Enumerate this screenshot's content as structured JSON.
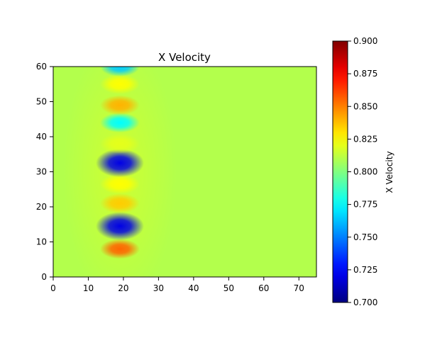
{
  "chart_data": {
    "type": "heatmap",
    "title": "X Velocity",
    "xlabel": "",
    "ylabel": "",
    "xlim": [
      0,
      75
    ],
    "ylim": [
      0,
      60
    ],
    "xticks": [
      0,
      10,
      20,
      30,
      40,
      50,
      60,
      70
    ],
    "yticks": [
      0,
      10,
      20,
      30,
      40,
      50,
      60
    ],
    "colorbar": {
      "label": "X Velocity",
      "vmin": 0.7,
      "vmax": 0.9,
      "colormap": "jet",
      "ticks": [
        "0.700",
        "0.725",
        "0.750",
        "0.775",
        "0.800",
        "0.825",
        "0.850",
        "0.875",
        "0.900"
      ]
    },
    "background_value": 0.81,
    "features": [
      {
        "x": 19,
        "y": 8,
        "value": 0.855
      },
      {
        "x": 19,
        "y": 14.5,
        "value": 0.72
      },
      {
        "x": 19,
        "y": 21,
        "value": 0.835
      },
      {
        "x": 19,
        "y": 26.5,
        "value": 0.825
      },
      {
        "x": 19,
        "y": 32.5,
        "value": 0.72
      },
      {
        "x": 19,
        "y": 38,
        "value": 0.82
      },
      {
        "x": 19,
        "y": 44,
        "value": 0.775
      },
      {
        "x": 19,
        "y": 49,
        "value": 0.84
      },
      {
        "x": 19,
        "y": 55,
        "value": 0.825
      },
      {
        "x": 19,
        "y": 60,
        "value": 0.765
      }
    ]
  }
}
